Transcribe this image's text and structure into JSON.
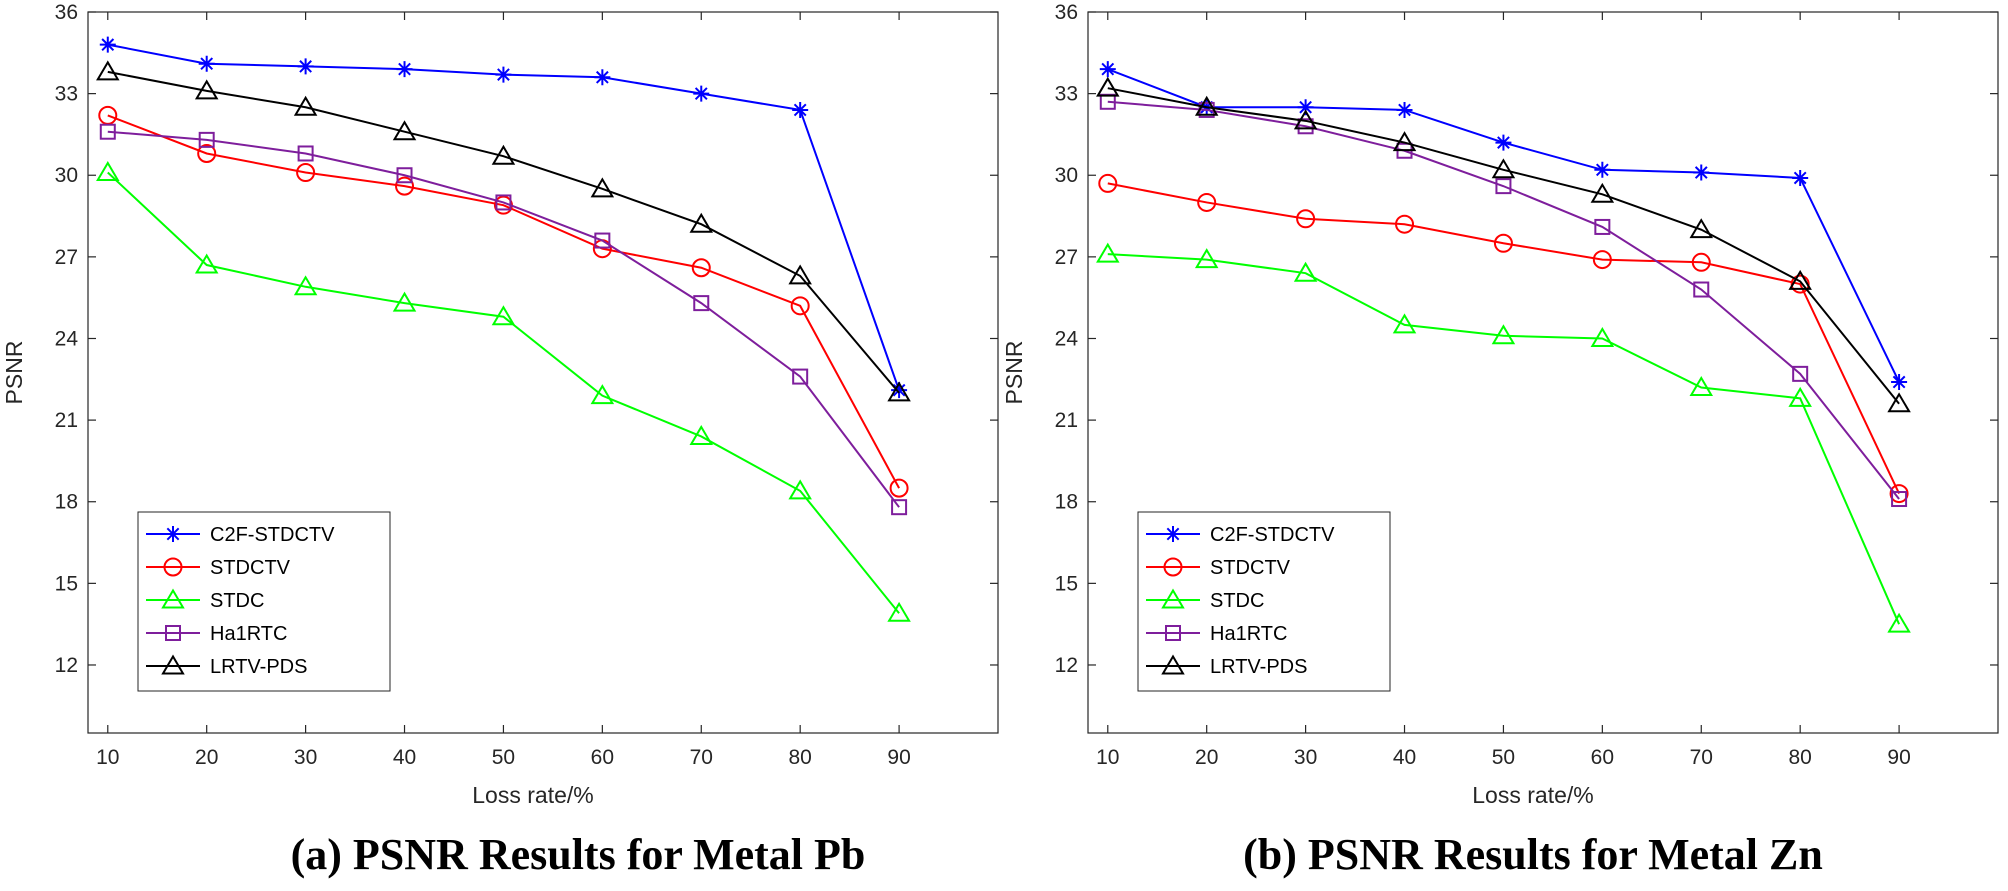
{
  "chart_data": [
    {
      "type": "line",
      "caption": "(a) PSNR Results for Metal Pb",
      "xlabel": "Loss rate/%",
      "ylabel": "PSNR",
      "xlim": [
        8,
        100
      ],
      "ylim": [
        9.5,
        36
      ],
      "x": [
        10,
        20,
        30,
        40,
        50,
        60,
        70,
        80,
        90
      ],
      "xticks": [
        "10",
        "20",
        "30",
        "40",
        "50",
        "60",
        "70",
        "80",
        "90"
      ],
      "yticks": [
        "12",
        "15",
        "18",
        "21",
        "24",
        "27",
        "30",
        "33",
        "36"
      ],
      "legend_position": "bottom-left",
      "series": [
        {
          "name": "C2F-STDCTV",
          "color": "#0000FF",
          "marker": "star",
          "values": [
            34.8,
            34.1,
            34.0,
            33.9,
            33.7,
            33.6,
            33.0,
            32.4,
            22.1
          ]
        },
        {
          "name": "STDCTV",
          "color": "#FF0000",
          "marker": "circle",
          "values": [
            32.2,
            30.8,
            30.1,
            29.6,
            28.9,
            27.3,
            26.6,
            25.2,
            18.5
          ]
        },
        {
          "name": "STDC",
          "color": "#00FF00",
          "marker": "triangle",
          "values": [
            30.1,
            26.7,
            25.9,
            25.3,
            24.8,
            21.9,
            20.4,
            18.4,
            13.9
          ]
        },
        {
          "name": "Ha1RTC",
          "color": "#7E1E9C",
          "marker": "square",
          "values": [
            31.6,
            31.3,
            30.8,
            30.0,
            29.0,
            27.6,
            25.3,
            22.6,
            17.8
          ]
        },
        {
          "name": "LRTV-PDS",
          "color": "#000000",
          "marker": "triangle",
          "values": [
            33.8,
            33.1,
            32.5,
            31.6,
            30.7,
            29.5,
            28.2,
            26.3,
            22.0
          ]
        }
      ]
    },
    {
      "type": "line",
      "caption": "(b) PSNR Results for Metal Zn",
      "xlabel": "Loss rate/%",
      "ylabel": "PSNR",
      "xlim": [
        8,
        100
      ],
      "ylim": [
        9.5,
        36
      ],
      "x": [
        10,
        20,
        30,
        40,
        50,
        60,
        70,
        80,
        90
      ],
      "xticks": [
        "10",
        "20",
        "30",
        "40",
        "50",
        "60",
        "70",
        "80",
        "90"
      ],
      "yticks": [
        "12",
        "15",
        "18",
        "21",
        "24",
        "27",
        "30",
        "33",
        "36"
      ],
      "legend_position": "bottom-left",
      "series": [
        {
          "name": "C2F-STDCTV",
          "color": "#0000FF",
          "marker": "star",
          "values": [
            33.9,
            32.5,
            32.5,
            32.4,
            31.2,
            30.2,
            30.1,
            29.9,
            22.4
          ]
        },
        {
          "name": "STDCTV",
          "color": "#FF0000",
          "marker": "circle",
          "values": [
            29.7,
            29.0,
            28.4,
            28.2,
            27.5,
            26.9,
            26.8,
            26.0,
            18.3
          ]
        },
        {
          "name": "STDC",
          "color": "#00FF00",
          "marker": "triangle",
          "values": [
            27.1,
            26.9,
            26.4,
            24.5,
            24.1,
            24.0,
            22.2,
            21.8,
            13.5
          ]
        },
        {
          "name": "Ha1RTC",
          "color": "#7E1E9C",
          "marker": "square",
          "values": [
            32.7,
            32.4,
            31.8,
            30.9,
            29.6,
            28.1,
            25.8,
            22.7,
            18.1
          ]
        },
        {
          "name": "LRTV-PDS",
          "color": "#000000",
          "marker": "triangle",
          "values": [
            33.2,
            32.5,
            32.0,
            31.2,
            30.2,
            29.3,
            28.0,
            26.1,
            21.6
          ]
        }
      ]
    }
  ]
}
